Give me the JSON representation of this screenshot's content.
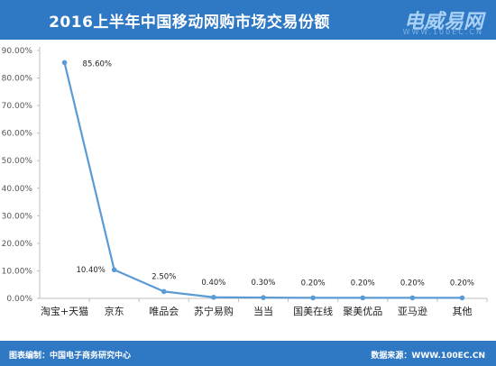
{
  "header": {
    "title": "2016上半年中国移动网购市场交易份额",
    "brand": "电威易网",
    "brand_url": "WWW.100EC.CN"
  },
  "footer": {
    "left": "图表编制：中国电子商务研究中心",
    "right": "数据来源：WWW.100EC.CN"
  },
  "colors": {
    "header_bg": "#2f78c3",
    "line": "#5b9bd5",
    "axis": "#bfbfbf"
  },
  "chart_data": {
    "type": "line",
    "title": "2016上半年中国移动网购市场交易份额",
    "categories": [
      "淘宝+天猫",
      "京东",
      "唯品会",
      "苏宁易购",
      "当当",
      "国美在线",
      "聚美优品",
      "亚马逊",
      "其他"
    ],
    "values": [
      85.6,
      10.4,
      2.5,
      0.4,
      0.3,
      0.2,
      0.2,
      0.2,
      0.2
    ],
    "data_labels": [
      "85.60%",
      "10.40%",
      "2.50%",
      "0.40%",
      "0.30%",
      "0.20%",
      "0.20%",
      "0.20%",
      "0.20%"
    ],
    "yticks": [
      "0.00%",
      "10.00%",
      "20.00%",
      "30.00%",
      "40.00%",
      "50.00%",
      "60.00%",
      "70.00%",
      "80.00%",
      "90.00%"
    ],
    "ylim": [
      0,
      90
    ],
    "grid": false,
    "legend": "none"
  }
}
